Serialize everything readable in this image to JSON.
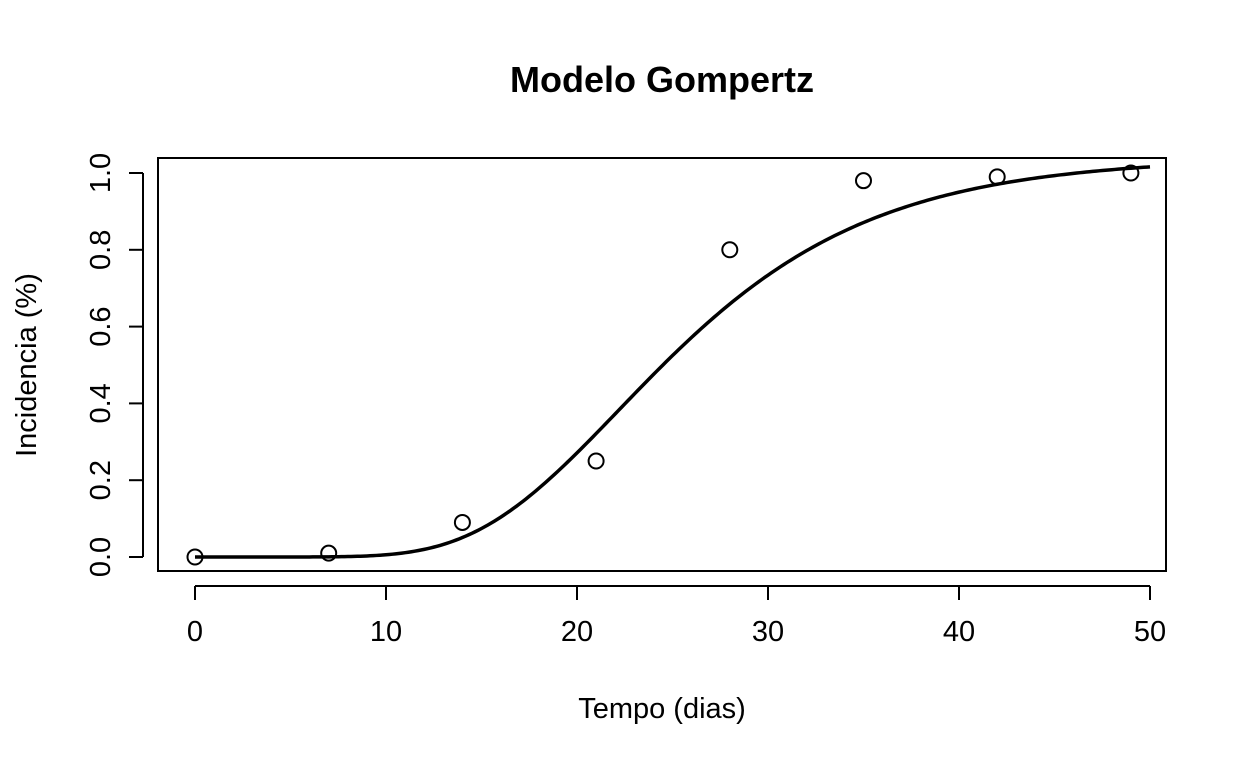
{
  "chart_data": {
    "type": "scatter",
    "title": "Modelo Gompertz",
    "xlabel": "Tempo (dias)",
    "ylabel": "Incidencia (%)",
    "xlim": [
      0,
      50
    ],
    "ylim": [
      0,
      1
    ],
    "x_ticks": [
      "0",
      "10",
      "20",
      "30",
      "40",
      "50"
    ],
    "y_ticks": [
      "0.0",
      "0.2",
      "0.4",
      "0.6",
      "0.8",
      "1.0"
    ],
    "grid": false,
    "legend": "none",
    "series": [
      {
        "type": "scatter",
        "marker": "open-circle",
        "x": [
          0,
          7,
          14,
          21,
          28,
          35,
          42,
          49
        ],
        "y": [
          0.0,
          0.01,
          0.09,
          0.25,
          0.8,
          0.98,
          0.99,
          1.0
        ]
      },
      {
        "type": "line",
        "model": "gompertz",
        "params": {
          "a": 1.04,
          "b": 20,
          "r": 0.135
        },
        "x_range": [
          0,
          50
        ]
      }
    ]
  }
}
